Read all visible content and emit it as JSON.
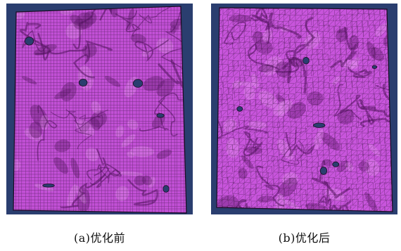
{
  "figure": {
    "panels": [
      {
        "id": "a",
        "caption": "(a)优化前",
        "mesh_style": "quad-grid",
        "background_color": "#2a3e6f",
        "surface_color": "#c250d6",
        "line_color": "#2a1030"
      },
      {
        "id": "b",
        "caption": "(b)优化后",
        "mesh_style": "triangulated",
        "background_color": "#2a3e6f",
        "surface_color": "#c855dc",
        "line_color": "#2a1030"
      }
    ]
  }
}
